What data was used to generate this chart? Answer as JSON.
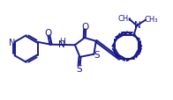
{
  "bg_color": "#ffffff",
  "line_color": "#1a1a8c",
  "line_width": 1.4,
  "figsize": [
    1.96,
    1.15
  ],
  "dpi": 100,
  "xlim": [
    0,
    10
  ],
  "ylim": [
    0,
    6
  ]
}
